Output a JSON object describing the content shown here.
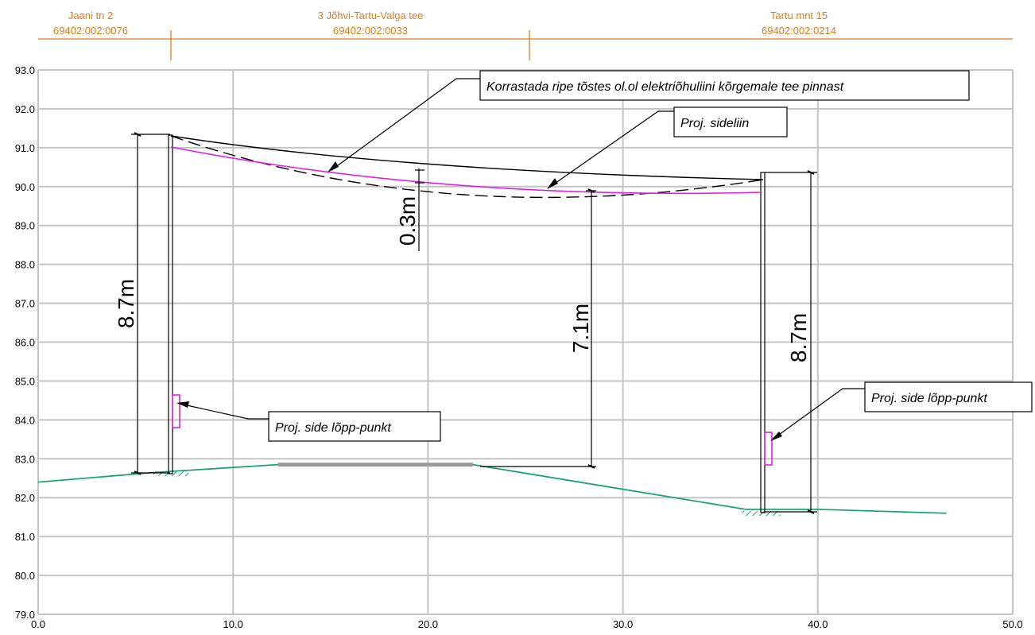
{
  "parcels": [
    {
      "name": "Jaani tn 2",
      "code": "69402:002:0076"
    },
    {
      "name": "3 Jõhvi-Tartu-Valga tee",
      "code": "69402:002:0033"
    },
    {
      "name": "Tartu mnt 15",
      "code": "69402:002:0214"
    }
  ],
  "axes": {
    "x_ticks": [
      "0.0",
      "10.0",
      "20.0",
      "30.0",
      "40.0",
      "50.0"
    ],
    "y_ticks": [
      "93.0",
      "92.0",
      "91.0",
      "90.0",
      "89.0",
      "88.0",
      "87.0",
      "86.0",
      "85.0",
      "84.0",
      "83.0",
      "82.0",
      "81.0",
      "80.0",
      "79.0"
    ],
    "x_range": [
      0,
      50
    ],
    "y_range": [
      79,
      93
    ]
  },
  "dimensions": {
    "left_height": "8.7m",
    "center_clearance": "7.1m",
    "sag_difference": "0.3m",
    "right_height": "8.7m"
  },
  "callouts": {
    "power_line": "Korrastada ripe tõstes ol.ol elektriõhuliini kõrgemale tee pinnast",
    "telecom_line": "Proj. sideliin",
    "endpoint_left": "Proj. side lõpp-punkt",
    "endpoint_right": "Proj. side lõpp-punkt"
  },
  "profile": {
    "ground": [
      [
        0,
        82.4
      ],
      [
        6,
        82.65
      ],
      [
        12.3,
        82.85
      ],
      [
        22.3,
        82.85
      ],
      [
        36.3,
        81.7
      ],
      [
        40,
        81.7
      ],
      [
        46.6,
        81.6
      ]
    ],
    "road": [
      [
        12.3,
        82.85
      ],
      [
        22.3,
        82.85
      ]
    ],
    "poles": [
      6.6,
      37.1
    ],
    "power_line_existing": [
      [
        6.6,
        91.3
      ],
      [
        14,
        90.75
      ],
      [
        20,
        90.4
      ],
      [
        26,
        90.2
      ],
      [
        37.1,
        90.15
      ]
    ],
    "power_line_old_sag": [
      [
        6.6,
        91.3
      ],
      [
        12,
        90.6
      ],
      [
        18,
        90.05
      ],
      [
        26,
        89.75
      ],
      [
        32,
        89.8
      ],
      [
        37.1,
        90.15
      ]
    ],
    "telecom_line": [
      [
        6.6,
        91.0
      ],
      [
        12,
        90.6
      ],
      [
        18,
        90.2
      ],
      [
        26,
        89.9
      ],
      [
        37.1,
        89.85
      ]
    ],
    "endpoint_boxes": [
      [
        6.6,
        83.8,
        84.65
      ],
      [
        37.1,
        82.9,
        83.7
      ]
    ]
  },
  "colors": {
    "parcel": "#e07b1a",
    "ground": "#1aa37a",
    "road": "#999999",
    "telecom": "#e020e0",
    "grid": "#c4c4c4",
    "ink": "#000000"
  }
}
